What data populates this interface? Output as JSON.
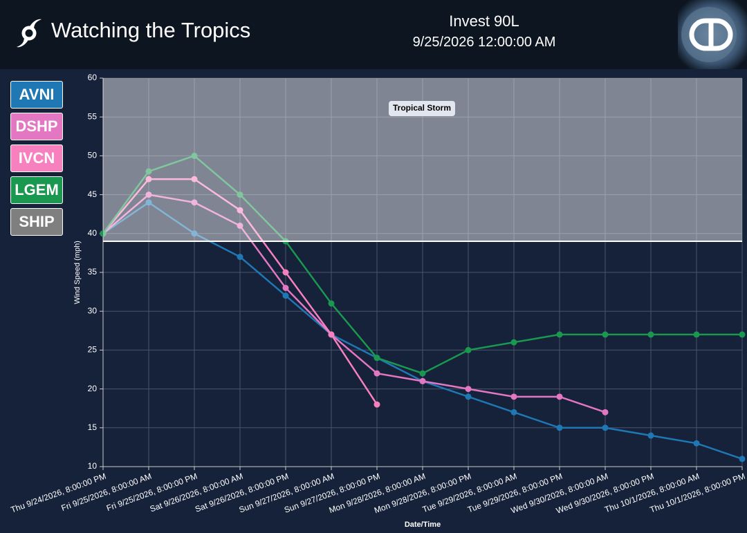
{
  "header": {
    "app_title": "Watching the Tropics",
    "storm": "Invest 90L",
    "time": "9/25/2026 12:00:00 AM"
  },
  "chart_data": {
    "type": "line",
    "x_label": "Date/Time",
    "y_label": "Wind Speed (mph)",
    "categories": [
      "Thu 9/24/2026, 8:00:00 PM",
      "Fri 9/25/2026, 8:00:00 AM",
      "Fri 9/25/2026, 8:00:00 PM",
      "Sat 9/26/2026, 8:00:00 AM",
      "Sat 9/26/2026, 8:00:00 PM",
      "Sun 9/27/2026, 8:00:00 AM",
      "Sun 9/27/2026, 8:00:00 PM",
      "Mon 9/28/2026, 8:00:00 AM",
      "Mon 9/28/2026, 8:00:00 PM",
      "Tue 9/29/2026, 8:00:00 AM",
      "Tue 9/29/2026, 8:00:00 PM",
      "Wed 9/30/2026, 8:00:00 AM",
      "Wed 9/30/2026, 8:00:00 PM",
      "Thu 10/1/2026, 8:00:00 AM",
      "Thu 10/1/2026, 8:00:00 PM"
    ],
    "series": [
      {
        "name": "AVNI",
        "color": "#1f77b4",
        "values": [
          40,
          44,
          40,
          37,
          32,
          27,
          24,
          21,
          19,
          17,
          15,
          15,
          14,
          13,
          11
        ]
      },
      {
        "name": "DSHP",
        "color": "#e377c2",
        "values": [
          40,
          45,
          44,
          41,
          33,
          27,
          22,
          21,
          20,
          19,
          19,
          17,
          null,
          null,
          null
        ]
      },
      {
        "name": "IVCN",
        "color": "#f781bf",
        "values": [
          40,
          47,
          47,
          43,
          35,
          27,
          18,
          null,
          null,
          null,
          null,
          null,
          null,
          null,
          null
        ]
      },
      {
        "name": "LGEM",
        "color": "#1a9850",
        "values": [
          40,
          48,
          50,
          45,
          39,
          31,
          24,
          22,
          25,
          26,
          27,
          27,
          27,
          27,
          27
        ]
      },
      {
        "name": "SHIP",
        "color": "#7f7f7f",
        "values": [
          null,
          null,
          null,
          null,
          null,
          null,
          null,
          null,
          null,
          null,
          null,
          null,
          null,
          null,
          null
        ]
      }
    ],
    "bands": [
      {
        "label": "Tropical Storm",
        "from": 39,
        "to": 60
      }
    ],
    "ylim": [
      10,
      60
    ],
    "yticks": [
      10,
      15,
      20,
      25,
      30,
      35,
      40,
      45,
      50,
      55,
      60
    ],
    "grid": true
  }
}
